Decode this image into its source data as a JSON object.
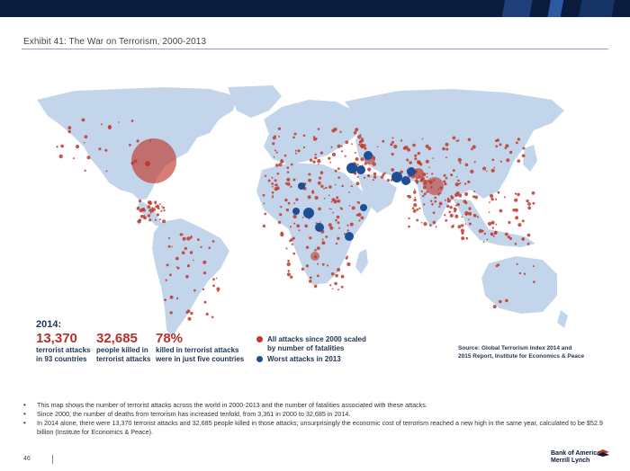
{
  "header": {
    "exhibit_title": "Exhibit 41: The War on Terrorism, 2000-2013"
  },
  "map": {
    "land_color": "#c2d5ea",
    "attack_color": "#c0392b",
    "worst_color": "#1f4e96",
    "stats": {
      "year": "2014:",
      "items": [
        {
          "value": "13,370",
          "label_line1": "terrorist attacks",
          "label_line2": "in 93 countries"
        },
        {
          "value": "32,685",
          "label_line1": "people killed in",
          "label_line2": "terrorist attacks"
        },
        {
          "value": "78%",
          "label_line1": "killed in terrorist attacks",
          "label_line2": "were in just five countries"
        }
      ]
    },
    "legend": {
      "attacks_line1": "All attacks since 2000 scaled",
      "attacks_line2": "by number of fatalities",
      "worst": "Worst attacks in 2013"
    },
    "source_line1": "Source: Global Terrorism Index 2014 and",
    "source_line2": "2015 Report, Institute for Economics & Peace"
  },
  "bullets": [
    "This map shows the number of terrorist attacks across the world in 2000-2013 and the number of fatalities associated with these attacks.",
    "Since 2000, the number of deaths from terrorism has increased tenfold, from 3,361 in 2000 to 32,685 in 2014.",
    "In 2014 alone, there were 13,370 terrorist attacks and 32,685 people killed in those attacks; unsurprisingly the economic cost of terrorism reached a new high in the same year, calculated to be $52.9 billion (Institute for Economics & Peace)."
  ],
  "footer": {
    "page_number": "46",
    "logo_line1": "Bank of America",
    "logo_line2": "Merrill Lynch"
  }
}
